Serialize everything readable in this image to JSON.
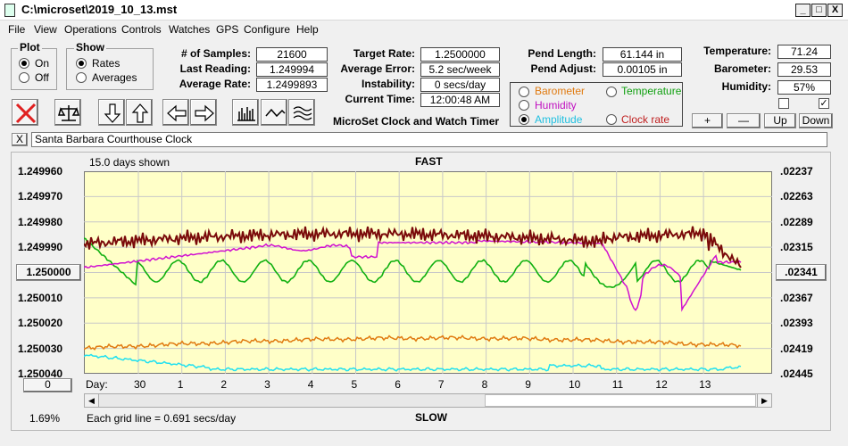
{
  "window": {
    "title": "C:\\microset\\2019_10_13.mst",
    "minimize": "_",
    "maximize": "□",
    "close": "X"
  },
  "menu": [
    "File",
    "View",
    "Operations",
    "Controls",
    "Watches",
    "GPS",
    "Configure",
    "Help"
  ],
  "plot_group": {
    "title": "Plot",
    "options": [
      {
        "label": "On",
        "selected": true
      },
      {
        "label": "Off",
        "selected": false
      }
    ]
  },
  "show_group": {
    "title": "Show",
    "options": [
      {
        "label": "Rates",
        "selected": true
      },
      {
        "label": "Averages",
        "selected": false
      }
    ]
  },
  "readings": {
    "samples_label": "# of Samples:",
    "samples_value": "21600",
    "last_reading_label": "Last Reading:",
    "last_reading_value": "1.249994",
    "average_rate_label": "Average Rate:",
    "average_rate_value": "1.2499893",
    "target_rate_label": "Target Rate:",
    "target_rate_value": "1.2500000",
    "average_error_label": "Average Error:",
    "average_error_value": "5.2 sec/week",
    "instability_label": "Instability:",
    "instability_value": "0 secs/day",
    "current_time_label": "Current Time:",
    "current_time_value": "12:00:48 AM",
    "pend_length_label": "Pend Length:",
    "pend_length_value": "61.144 in",
    "pend_adjust_label": "Pend Adjust:",
    "pend_adjust_value": "0.00105 in",
    "temperature_label": "Temperature:",
    "temperature_value": "71.24",
    "barometer_label": "Barometer:",
    "barometer_value": "29.53",
    "humidity_label": "Humidity:",
    "humidity_value": "57%"
  },
  "app_caption": "MicroSet Clock and Watch Timer",
  "overlay_selector": {
    "options": [
      {
        "label": "Barometer",
        "color": "#e07a10",
        "selected": false
      },
      {
        "label": "Temperature",
        "color": "#10a010",
        "selected": false
      },
      {
        "label": "Humidity",
        "color": "#c010c0",
        "selected": false
      },
      {
        "label": "Amplitude",
        "color": "#20c0e0",
        "selected": true
      },
      {
        "label": "Clock rate",
        "color": "#c02020",
        "selected": false
      }
    ]
  },
  "adjust_buttons": {
    "plus": "+",
    "minus": "—",
    "up": "Up",
    "down": "Down"
  },
  "checkboxes": [
    {
      "checked": false
    },
    {
      "checked": true
    }
  ],
  "clock_name": "Santa Barbara Courthouse Clock",
  "clear_name_button": "X",
  "toolbar_icons": [
    "cancel-icon",
    "scale-icon",
    "arrow-down-icon",
    "arrow-up-icon",
    "arrow-left-icon",
    "arrow-right-icon",
    "bars-icon",
    "wave-icon",
    "multiwave-icon"
  ],
  "chart": {
    "days_shown": "15.0 days shown",
    "top_label": "FAST",
    "bottom_label": "SLOW",
    "grid_note": "Each grid line = 0.691 secs/day",
    "percent": "1.69%",
    "day_prefix": "Day:",
    "zero_button": "0",
    "center_value_button": "1.250000",
    "right_center_button": ".02341",
    "left_ticks": [
      "1.249960",
      "1.249970",
      "1.249980",
      "1.249990",
      "1.250000",
      "1.250010",
      "1.250020",
      "1.250030",
      "1.250040"
    ],
    "right_ticks": [
      ".02237",
      ".02263",
      ".02289",
      ".02315",
      ".02341",
      ".02367",
      ".02393",
      ".02419",
      ".02445"
    ],
    "day_ticks": [
      "30",
      "1",
      "2",
      "3",
      "4",
      "5",
      "6",
      "7",
      "8",
      "9",
      "10",
      "11",
      "12",
      "13"
    ],
    "colors": {
      "rate": "#7a0a0a",
      "humidity": "#d010d0",
      "temperature": "#10b010",
      "barometer": "#e07a10",
      "amplitude": "#20e0f0",
      "grid": "#c8c8c8"
    }
  }
}
